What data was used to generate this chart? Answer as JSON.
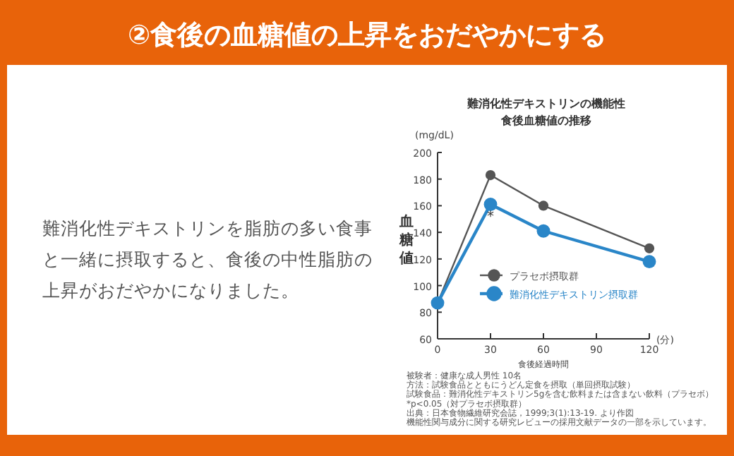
{
  "chart_data": {
    "type": "line",
    "title": "②食後の血糖値の上昇をおだやかにする",
    "subtitle": "難消化性デキストリンの機能性",
    "xlabel": "食後経過時間",
    "ylabel": "血糖値",
    "x": [
      0,
      30,
      60,
      120
    ],
    "series": [
      {
        "name": "プラセボ摂取群",
        "color": "#555555",
        "values": [
          87,
          183,
          160,
          128
        ]
      },
      {
        "name": "難消化性デキストリン摂取群",
        "color": "#2a86c8",
        "values": [
          87,
          161,
          141,
          118
        ]
      }
    ],
    "xlim": [
      0,
      120
    ],
    "xticks": [
      0,
      30,
      60,
      90,
      120
    ],
    "ylim": [
      60,
      200
    ],
    "yticks": [
      60,
      80,
      100,
      120,
      140,
      160,
      180,
      200
    ],
    "grid": false,
    "legend": "right",
    "marker": "circle",
    "line_style": "solid",
    "annotations": [
      "食後血糖値の推移",
      "難消化性デキストリンを脂肪の多い食事",
      "と一緒に摂取すると、食後の中性脂肪の",
      "上昇がおだやかになりました。",
      "(mg/dL)",
      "(分)",
      {
        "text": "*",
        "x": 30,
        "y": 155
      },
      "被験者：健康な成人男性 10名",
      "方法：試験食品とともにうどん定食を摂取（単回摂取試験）",
      "試験食品：難消化性デキストリン5gを含む飲料または含まない飲料（プラセボ）",
      "*p<0.05（対プラセボ摂取群）",
      "出典：日本食物繊維研究会誌，1999;3(1):13-19. より作図",
      "機能性関与成分に関する研究レビューの採用文献データの一部を示しています。"
    ]
  }
}
